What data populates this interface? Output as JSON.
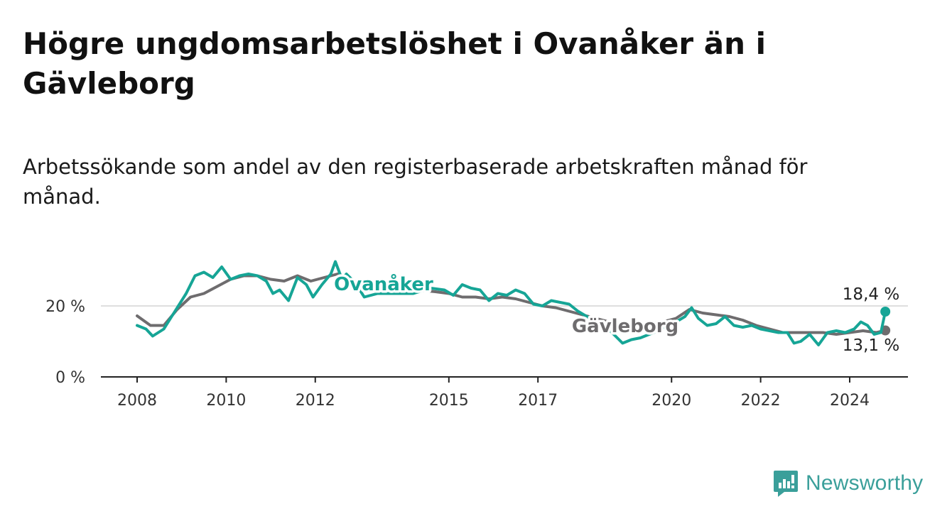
{
  "title": "Högre ungdomsarbetslöshet i Ovanåker än i Gävleborg",
  "subtitle": "Arbetssökande som andel av den registerbaserade arbetskraften månad för månad.",
  "brand": {
    "name": "Newsworthy",
    "icon": "newsworthy-logo-icon",
    "color": "#3a9f9a"
  },
  "chart_data": {
    "type": "line",
    "title": "",
    "xlabel": "",
    "ylabel": "",
    "x_ticks": [
      "2008",
      "2010",
      "2012",
      "2015",
      "2017",
      "2020",
      "2022",
      "2024"
    ],
    "y_ticks": [
      "0 %",
      "20 %"
    ],
    "ylim": [
      0,
      34
    ],
    "xlim": [
      2007.2,
      2025.3
    ],
    "grid": "horizontal at 20 %",
    "series": [
      {
        "name": "Ovanåker",
        "color": "#16a596",
        "end_label": "18,4 %",
        "points": [
          [
            2008.0,
            14.5
          ],
          [
            2008.2,
            13.5
          ],
          [
            2008.35,
            11.5
          ],
          [
            2008.6,
            13.5
          ],
          [
            2008.9,
            19.5
          ],
          [
            2009.1,
            23.5
          ],
          [
            2009.3,
            28.5
          ],
          [
            2009.5,
            29.5
          ],
          [
            2009.7,
            28.0
          ],
          [
            2009.9,
            31.0
          ],
          [
            2010.1,
            27.5
          ],
          [
            2010.3,
            28.5
          ],
          [
            2010.5,
            29.0
          ],
          [
            2010.7,
            28.5
          ],
          [
            2010.9,
            27.0
          ],
          [
            2011.05,
            23.5
          ],
          [
            2011.2,
            24.5
          ],
          [
            2011.4,
            21.5
          ],
          [
            2011.6,
            28.0
          ],
          [
            2011.8,
            26.0
          ],
          [
            2011.95,
            22.5
          ],
          [
            2012.15,
            26.0
          ],
          [
            2012.35,
            29.0
          ],
          [
            2012.45,
            32.5
          ],
          [
            2012.6,
            27.5
          ],
          [
            2012.7,
            29.0
          ],
          [
            2012.9,
            26.5
          ],
          [
            2013.1,
            22.5
          ],
          [
            2013.4,
            23.5
          ],
          [
            2013.8,
            23.5
          ],
          [
            2014.2,
            23.5
          ],
          [
            2014.6,
            25.0
          ],
          [
            2014.9,
            24.5
          ],
          [
            2015.1,
            23.0
          ],
          [
            2015.3,
            26.0
          ],
          [
            2015.5,
            25.0
          ],
          [
            2015.7,
            24.5
          ],
          [
            2015.9,
            21.5
          ],
          [
            2016.1,
            23.5
          ],
          [
            2016.3,
            23.0
          ],
          [
            2016.5,
            24.5
          ],
          [
            2016.7,
            23.5
          ],
          [
            2016.9,
            20.5
          ],
          [
            2017.1,
            20.0
          ],
          [
            2017.3,
            21.5
          ],
          [
            2017.5,
            21.0
          ],
          [
            2017.7,
            20.5
          ],
          [
            2017.9,
            18.5
          ],
          [
            2018.1,
            17.0
          ],
          [
            2018.3,
            15.5
          ],
          [
            2018.5,
            14.5
          ],
          [
            2018.7,
            12.0
          ],
          [
            2018.9,
            9.5
          ],
          [
            2019.1,
            10.5
          ],
          [
            2019.3,
            11.0
          ],
          [
            2019.6,
            12.5
          ],
          [
            2019.9,
            14.5
          ],
          [
            2020.1,
            15.5
          ],
          [
            2020.3,
            17.0
          ],
          [
            2020.45,
            19.5
          ],
          [
            2020.6,
            16.5
          ],
          [
            2020.8,
            14.5
          ],
          [
            2021.0,
            15.0
          ],
          [
            2021.2,
            17.0
          ],
          [
            2021.4,
            14.5
          ],
          [
            2021.6,
            14.0
          ],
          [
            2021.8,
            14.5
          ],
          [
            2022.0,
            13.5
          ],
          [
            2022.2,
            13.0
          ],
          [
            2022.4,
            12.5
          ],
          [
            2022.6,
            12.5
          ],
          [
            2022.75,
            9.5
          ],
          [
            2022.9,
            10.0
          ],
          [
            2023.1,
            12.0
          ],
          [
            2023.3,
            9.0
          ],
          [
            2023.5,
            12.5
          ],
          [
            2023.7,
            13.0
          ],
          [
            2023.9,
            12.5
          ],
          [
            2024.1,
            13.5
          ],
          [
            2024.25,
            15.5
          ],
          [
            2024.4,
            14.5
          ],
          [
            2024.55,
            12.0
          ],
          [
            2024.7,
            12.5
          ],
          [
            2024.8,
            18.4
          ]
        ]
      },
      {
        "name": "Gävleborg",
        "color": "#6e6c6e",
        "end_label": "13,1 %",
        "points": [
          [
            2008.0,
            17.2
          ],
          [
            2008.3,
            14.5
          ],
          [
            2008.6,
            14.5
          ],
          [
            2008.9,
            19.0
          ],
          [
            2009.2,
            22.5
          ],
          [
            2009.5,
            23.5
          ],
          [
            2009.8,
            25.5
          ],
          [
            2010.1,
            27.5
          ],
          [
            2010.4,
            28.5
          ],
          [
            2010.7,
            28.5
          ],
          [
            2011.0,
            27.5
          ],
          [
            2011.3,
            27.0
          ],
          [
            2011.6,
            28.5
          ],
          [
            2011.9,
            27.0
          ],
          [
            2012.2,
            28.0
          ],
          [
            2012.5,
            29.0
          ],
          [
            2012.8,
            27.5
          ],
          [
            2013.1,
            26.0
          ],
          [
            2013.5,
            25.5
          ],
          [
            2013.9,
            25.0
          ],
          [
            2014.3,
            24.5
          ],
          [
            2014.7,
            24.0
          ],
          [
            2015.0,
            23.5
          ],
          [
            2015.3,
            22.5
          ],
          [
            2015.6,
            22.5
          ],
          [
            2015.9,
            22.0
          ],
          [
            2016.2,
            22.5
          ],
          [
            2016.5,
            22.0
          ],
          [
            2016.8,
            21.0
          ],
          [
            2017.1,
            20.0
          ],
          [
            2017.4,
            19.5
          ],
          [
            2017.7,
            18.5
          ],
          [
            2018.0,
            17.5
          ],
          [
            2018.3,
            16.5
          ],
          [
            2018.6,
            15.5
          ],
          [
            2018.9,
            14.5
          ],
          [
            2019.2,
            14.5
          ],
          [
            2019.5,
            15.0
          ],
          [
            2019.8,
            15.5
          ],
          [
            2020.1,
            16.5
          ],
          [
            2020.4,
            19.0
          ],
          [
            2020.7,
            18.0
          ],
          [
            2021.0,
            17.5
          ],
          [
            2021.3,
            17.0
          ],
          [
            2021.6,
            16.0
          ],
          [
            2021.9,
            14.5
          ],
          [
            2022.2,
            13.5
          ],
          [
            2022.5,
            12.5
          ],
          [
            2022.8,
            12.5
          ],
          [
            2023.1,
            12.5
          ],
          [
            2023.4,
            12.5
          ],
          [
            2023.7,
            12.0
          ],
          [
            2024.0,
            12.5
          ],
          [
            2024.3,
            13.0
          ],
          [
            2024.6,
            12.5
          ],
          [
            2024.8,
            13.1
          ]
        ]
      }
    ]
  }
}
